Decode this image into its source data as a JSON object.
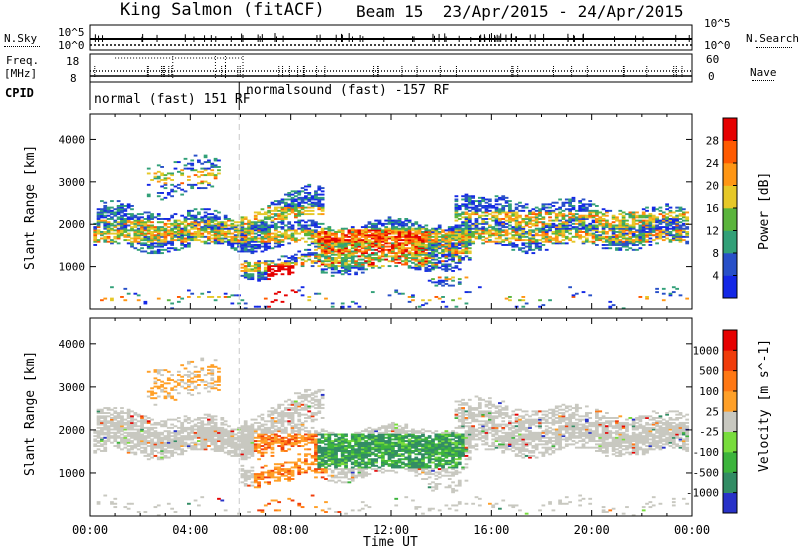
{
  "header": {
    "site": "King Salmon (fitACF)",
    "beam": "Beam 15",
    "dates": "23/Apr/2015 - 24/Apr/2015"
  },
  "strip_labels": {
    "nsky": "N.Sky",
    "nsky_top": "10^5",
    "nsky_bottom": "10^0",
    "nsearch": "N.Search",
    "nsearch_top": "10^5",
    "nsearch_bottom": "10^0",
    "freq": "Freq.",
    "freq_unit": "[MHz]",
    "freq_top": "18",
    "freq_bottom": "8",
    "nave": "Nave",
    "nave_top": "60",
    "nave_bottom": "0",
    "cpid": "CPID"
  },
  "modes": [
    {
      "label": "normal (fast) 151 RF"
    },
    {
      "label": "normalsound (fast) -157 RF"
    }
  ],
  "chart_data": [
    {
      "type": "heatmap",
      "panel": "power",
      "ylabel": "Slant Range [km]",
      "xlabel": "",
      "ylim": [
        0,
        4600
      ],
      "yticks": [
        "1000",
        "2000",
        "3000",
        "4000"
      ],
      "xticks": [
        "00:00",
        "04:00",
        "08:00",
        "12:00",
        "16:00",
        "20:00",
        "00:00"
      ],
      "colorbar": {
        "label": "Power [dB]",
        "ticks": [
          "4",
          "8",
          "12",
          "16",
          "20",
          "24",
          "28"
        ],
        "colors": [
          "#1428e6",
          "#2850c8",
          "#32a078",
          "#5ab43c",
          "#e6c828",
          "#ff9614",
          "#ff5a00",
          "#e60000"
        ]
      }
    },
    {
      "type": "heatmap",
      "panel": "velocity",
      "ylabel": "Slant Range [km]",
      "xlabel": "Time UT",
      "ylim": [
        0,
        4600
      ],
      "yticks": [
        "1000",
        "2000",
        "3000",
        "4000"
      ],
      "xticks": [
        "00:00",
        "04:00",
        "08:00",
        "12:00",
        "16:00",
        "20:00",
        "00:00"
      ],
      "colorbar": {
        "label": "Velocity [m s^-1]",
        "ticks": [
          "1000",
          "500",
          "100",
          "25",
          "-25",
          "-100",
          "-500",
          "-1000"
        ],
        "colors": [
          "#2832c8",
          "#328c64",
          "#3cb43c",
          "#78dc3c",
          "#c8c8c0",
          "#ffa028",
          "#ff7814",
          "#f03c0a",
          "#e60000"
        ]
      }
    }
  ]
}
